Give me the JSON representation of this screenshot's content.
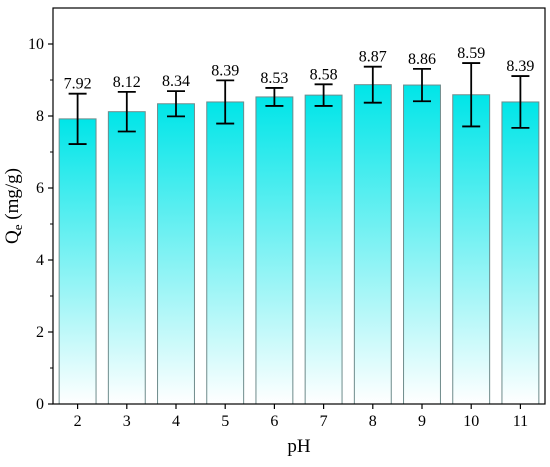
{
  "chart_data": {
    "type": "bar",
    "title": "",
    "xlabel": "pH",
    "ylabel_main": "Q",
    "ylabel_sub": "e",
    "ylabel_units": " (mg/g)",
    "categories": [
      "2",
      "3",
      "4",
      "5",
      "6",
      "7",
      "8",
      "9",
      "10",
      "11"
    ],
    "values": [
      7.92,
      8.12,
      8.34,
      8.39,
      8.53,
      8.58,
      8.87,
      8.86,
      8.59,
      8.39
    ],
    "value_labels": [
      "7.92",
      "8.12",
      "8.34",
      "8.39",
      "8.53",
      "8.58",
      "8.87",
      "8.86",
      "8.59",
      "8.39"
    ],
    "errors": [
      0.7,
      0.55,
      0.35,
      0.6,
      0.25,
      0.3,
      0.5,
      0.45,
      0.88,
      0.72
    ],
    "ylim": [
      0,
      11
    ],
    "yticks": [
      0,
      2,
      4,
      6,
      8,
      10
    ],
    "ytick_labels": [
      "0",
      "2",
      "4",
      "6",
      "8",
      "10"
    ],
    "grid": false,
    "legend": false,
    "bar_fill_top": "#00e5e8",
    "bar_fill_bottom": "#ffffff",
    "bar_stroke": "#6e8b8b",
    "errorbar_color": "#000000"
  }
}
